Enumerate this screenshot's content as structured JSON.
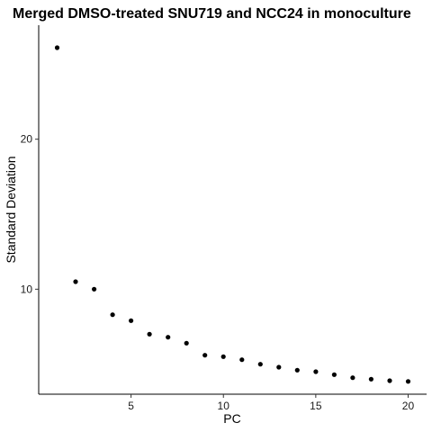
{
  "chart_data": {
    "type": "scatter",
    "title": "Merged DMSO-treated SNU719 and NCC24 in monoculture",
    "xlabel": "PC",
    "ylabel": "Standard Deviation",
    "x": [
      1,
      2,
      3,
      4,
      5,
      6,
      7,
      8,
      9,
      10,
      11,
      12,
      13,
      14,
      15,
      16,
      17,
      18,
      19,
      20
    ],
    "y": [
      26.1,
      10.5,
      10.0,
      8.3,
      7.9,
      7.0,
      6.8,
      6.4,
      5.6,
      5.5,
      5.3,
      5.0,
      4.8,
      4.6,
      4.5,
      4.3,
      4.1,
      4.0,
      3.9,
      3.85
    ],
    "xlim": [
      0,
      21
    ],
    "ylim": [
      3.0,
      27.6
    ],
    "xticks": [
      5,
      10,
      15,
      20
    ],
    "yticks": [
      10,
      20
    ],
    "grid": false,
    "point_color": "#000000"
  }
}
